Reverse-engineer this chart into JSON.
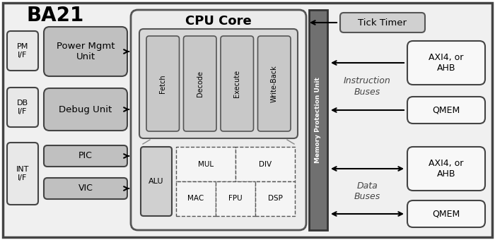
{
  "title": "BA21",
  "cpu_core_label": "CPU Core",
  "mpu_label": "Memory Protection Unit",
  "pipeline_stages": [
    "Fetch",
    "Decode",
    "Execute",
    "Write-Back"
  ],
  "alu_row1": [
    "ALU",
    "MUL",
    "DIV"
  ],
  "alu_row2": [
    "MAC",
    "FPU",
    "DSP"
  ],
  "tick_timer_label": "Tick Timer",
  "instruction_buses": "Instruction\nBuses",
  "data_buses": "Data\nBuses",
  "pm_if": "PM\nI/F",
  "pm_unit": "Power Mgmt\nUnit",
  "db_if": "DB\nI/F",
  "db_unit": "Debug Unit",
  "int_if": "INT\nI/F",
  "pic": "PIC",
  "vic": "VIC",
  "axi_ahb": "AXI4, or\nAHB",
  "qmem": "QMEM",
  "outer_fc": "#f0f0f0",
  "cpu_fc": "#e8e8e8",
  "pipe_fc": "#d8d8d8",
  "stage_fc": "#c8c8c8",
  "mpu_fc": "#707070",
  "unit_fc": "#c0c0c0",
  "if_fc": "#e8e8e8",
  "tt_fc": "#d0d0d0",
  "right_fc": "#f8f8f8",
  "alu_fc": "#d0d0d0"
}
